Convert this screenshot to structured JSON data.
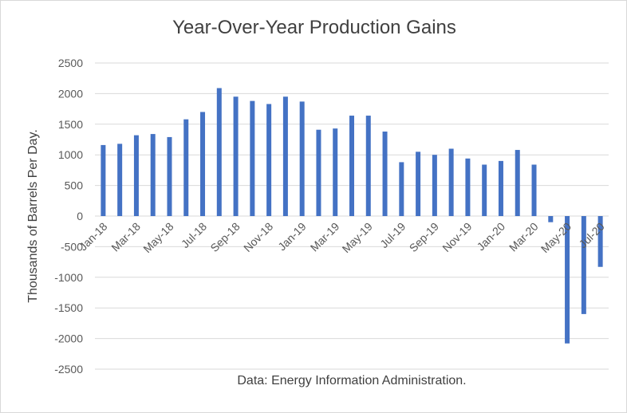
{
  "chart_data": {
    "type": "bar",
    "title": "Year-Over-Year Production Gains",
    "ylabel": "Thousands of Barrels Per Day.",
    "xlabel": "",
    "caption": "Data: Energy Information Administration.",
    "ylim": [
      -2500,
      2500
    ],
    "yticks": [
      2500,
      2000,
      1500,
      1000,
      500,
      0,
      -500,
      -1000,
      -1500,
      -2000,
      -2500
    ],
    "grid": true,
    "legend": "none",
    "bar_color": "#4472c4",
    "categories": [
      "Jan-18",
      "Feb-18",
      "Mar-18",
      "Apr-18",
      "May-18",
      "Jun-18",
      "Jul-18",
      "Aug-18",
      "Sep-18",
      "Oct-18",
      "Nov-18",
      "Dec-18",
      "Jan-19",
      "Feb-19",
      "Mar-19",
      "Apr-19",
      "May-19",
      "Jun-19",
      "Jul-19",
      "Aug-19",
      "Sep-19",
      "Oct-19",
      "Nov-19",
      "Dec-19",
      "Jan-20",
      "Feb-20",
      "Mar-20",
      "Apr-20",
      "May-20",
      "Jun-20",
      "Jul-20"
    ],
    "tick_labels_shown": [
      "Jan-18",
      "Mar-18",
      "May-18",
      "Jul-18",
      "Sep-18",
      "Nov-18",
      "Jan-19",
      "Mar-19",
      "May-19",
      "Jul-19",
      "Sep-19",
      "Nov-19",
      "Jan-20",
      "Mar-20",
      "May-20",
      "Jul-20"
    ],
    "values": [
      1160,
      1180,
      1320,
      1340,
      1290,
      1580,
      1700,
      2090,
      1950,
      1880,
      1830,
      1950,
      1870,
      1410,
      1430,
      1640,
      1640,
      1380,
      880,
      1050,
      1000,
      1100,
      940,
      840,
      900,
      1080,
      840,
      -100,
      -2080,
      -1600,
      -830
    ]
  }
}
